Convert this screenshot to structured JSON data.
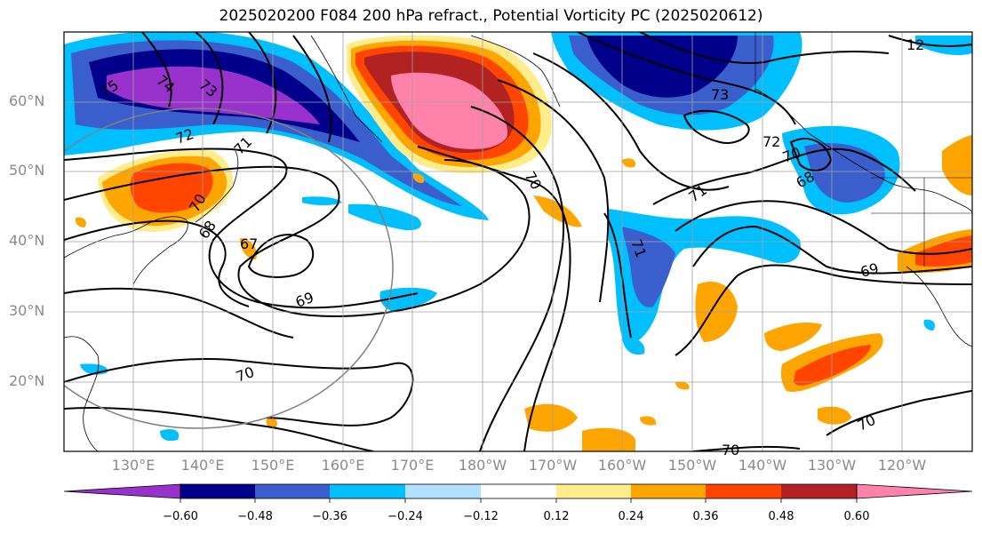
{
  "title": "2025020200 F084 200 hPa refract., Potential Vorticity PC (2025020612)",
  "lat_labels": [
    "60°N",
    "50°N",
    "40°N",
    "30°N",
    "20°N"
  ],
  "lon_labels": [
    "130°E",
    "140°E",
    "150°E",
    "160°E",
    "170°E",
    "180°W",
    "170°W",
    "160°W",
    "150°W",
    "140°W",
    "130°W",
    "120°W"
  ],
  "colorbar": {
    "ticks": [
      "−0.60",
      "−0.48",
      "−0.36",
      "−0.24",
      "−0.12",
      "0.12",
      "0.24",
      "0.36",
      "0.48",
      "0.60"
    ],
    "colors": [
      "#9932cc",
      "#00008b",
      "#3a5fcd",
      "#00bfff",
      "#b0e2ff",
      "#ffffff",
      "#ffec8b",
      "#ffa500",
      "#ff4500",
      "#b22222",
      "#ff82ab"
    ]
  },
  "contour_labels": [
    "75",
    "74",
    "73",
    "73",
    "72",
    "72",
    "71",
    "71",
    "70",
    "70",
    "70",
    "70",
    "69",
    "69",
    "68",
    "68",
    "67",
    "71",
    "70",
    "70",
    "12"
  ]
}
